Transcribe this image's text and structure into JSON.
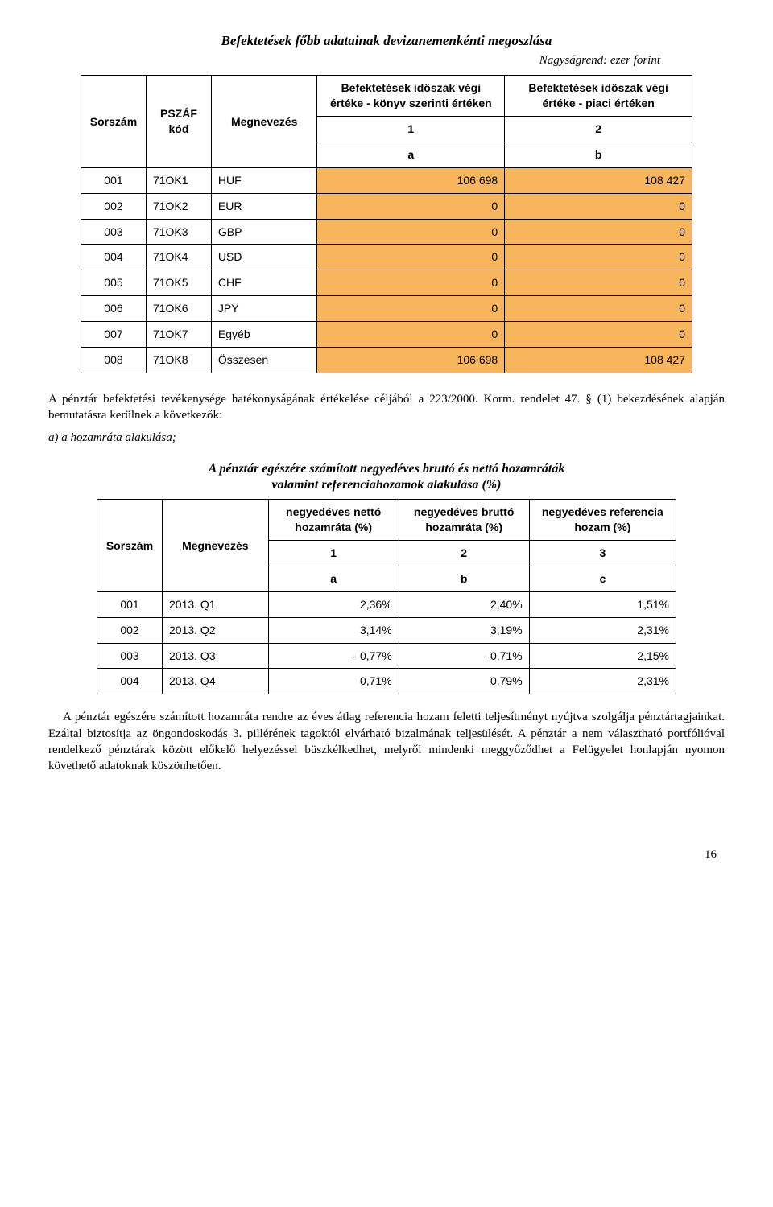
{
  "page": {
    "title1": "Befektetések főbb adatainak devizanemenkénti megoszlása",
    "subtitle1": "Nagyságrend: ezer forint",
    "title2_line1": "A pénztár egészére számított negyedéves bruttó és nettó hozamráták",
    "title2_line2": "valamint referenciahozamok alakulása (%)",
    "pagenum": "16"
  },
  "table1": {
    "headers": {
      "sorszam": "Sorszám",
      "pszaf": "PSZÁF kód",
      "megnev": "Megnevezés",
      "col1": "Befektetések időszak végi értéke - könyv szerinti értéken",
      "col2": "Befektetések időszak végi értéke - piaci értéken",
      "n1": "1",
      "n2": "2",
      "a": "a",
      "b": "b"
    },
    "rows": [
      {
        "s": "001",
        "k": "71OK1",
        "m": "HUF",
        "v1": "106 698",
        "v2": "108 427"
      },
      {
        "s": "002",
        "k": "71OK2",
        "m": "EUR",
        "v1": "0",
        "v2": "0"
      },
      {
        "s": "003",
        "k": "71OK3",
        "m": "GBP",
        "v1": "0",
        "v2": "0"
      },
      {
        "s": "004",
        "k": "71OK4",
        "m": "USD",
        "v1": "0",
        "v2": "0"
      },
      {
        "s": "005",
        "k": "71OK5",
        "m": "CHF",
        "v1": "0",
        "v2": "0"
      },
      {
        "s": "006",
        "k": "71OK6",
        "m": "JPY",
        "v1": "0",
        "v2": "0"
      },
      {
        "s": "007",
        "k": "71OK7",
        "m": "Egyéb",
        "v1": "0",
        "v2": "0"
      },
      {
        "s": "008",
        "k": "71OK8",
        "m": "Összesen",
        "v1": "106 698",
        "v2": "108 427"
      }
    ],
    "highlight_bg": "#f7b55c"
  },
  "paragraph1": "A pénztár befektetési tevékenysége hatékonyságának értékelése céljából a 223/2000. Korm. rendelet 47. § (1) bekezdésének alapján bemutatásra kerülnek a következők:",
  "paragraph2": "a) a hozamráta alakulása;",
  "table2": {
    "headers": {
      "sorszam": "Sorszám",
      "megnev": "Megnevezés",
      "col1": "negyedéves nettó hozamráta (%)",
      "col2": "negyedéves bruttó hozamráta (%)",
      "col3": "negyedéves referencia hozam (%)",
      "n1": "1",
      "n2": "2",
      "n3": "3",
      "a": "a",
      "b": "b",
      "c": "c"
    },
    "rows": [
      {
        "s": "001",
        "m": "2013. Q1",
        "v1": "2,36%",
        "v2": "2,40%",
        "v3": "1,51%"
      },
      {
        "s": "002",
        "m": "2013. Q2",
        "v1": "3,14%",
        "v2": "3,19%",
        "v3": "2,31%"
      },
      {
        "s": "003",
        "m": "2013. Q3",
        "v1": "- 0,77%",
        "v2": "- 0,71%",
        "v3": "2,15%"
      },
      {
        "s": "004",
        "m": "2013. Q4",
        "v1": "0,71%",
        "v2": "0,79%",
        "v3": "2,31%"
      }
    ]
  },
  "paragraph3": "A pénztár egészére számított hozamráta rendre az éves átlag referencia hozam feletti teljesítményt nyújtva szolgálja pénztártagjainkat. Ezáltal biztosítja az öngondoskodás 3. pillérének tagoktól elvárható bizalmának teljesülését. A pénztár a nem választható portfólióval rendelkező pénztárak között előkelő helyezéssel büszkélkedhet, melyről mindenki meggyőződhet a Felügyelet honlapján nyomon követhető adatoknak köszönhetően."
}
